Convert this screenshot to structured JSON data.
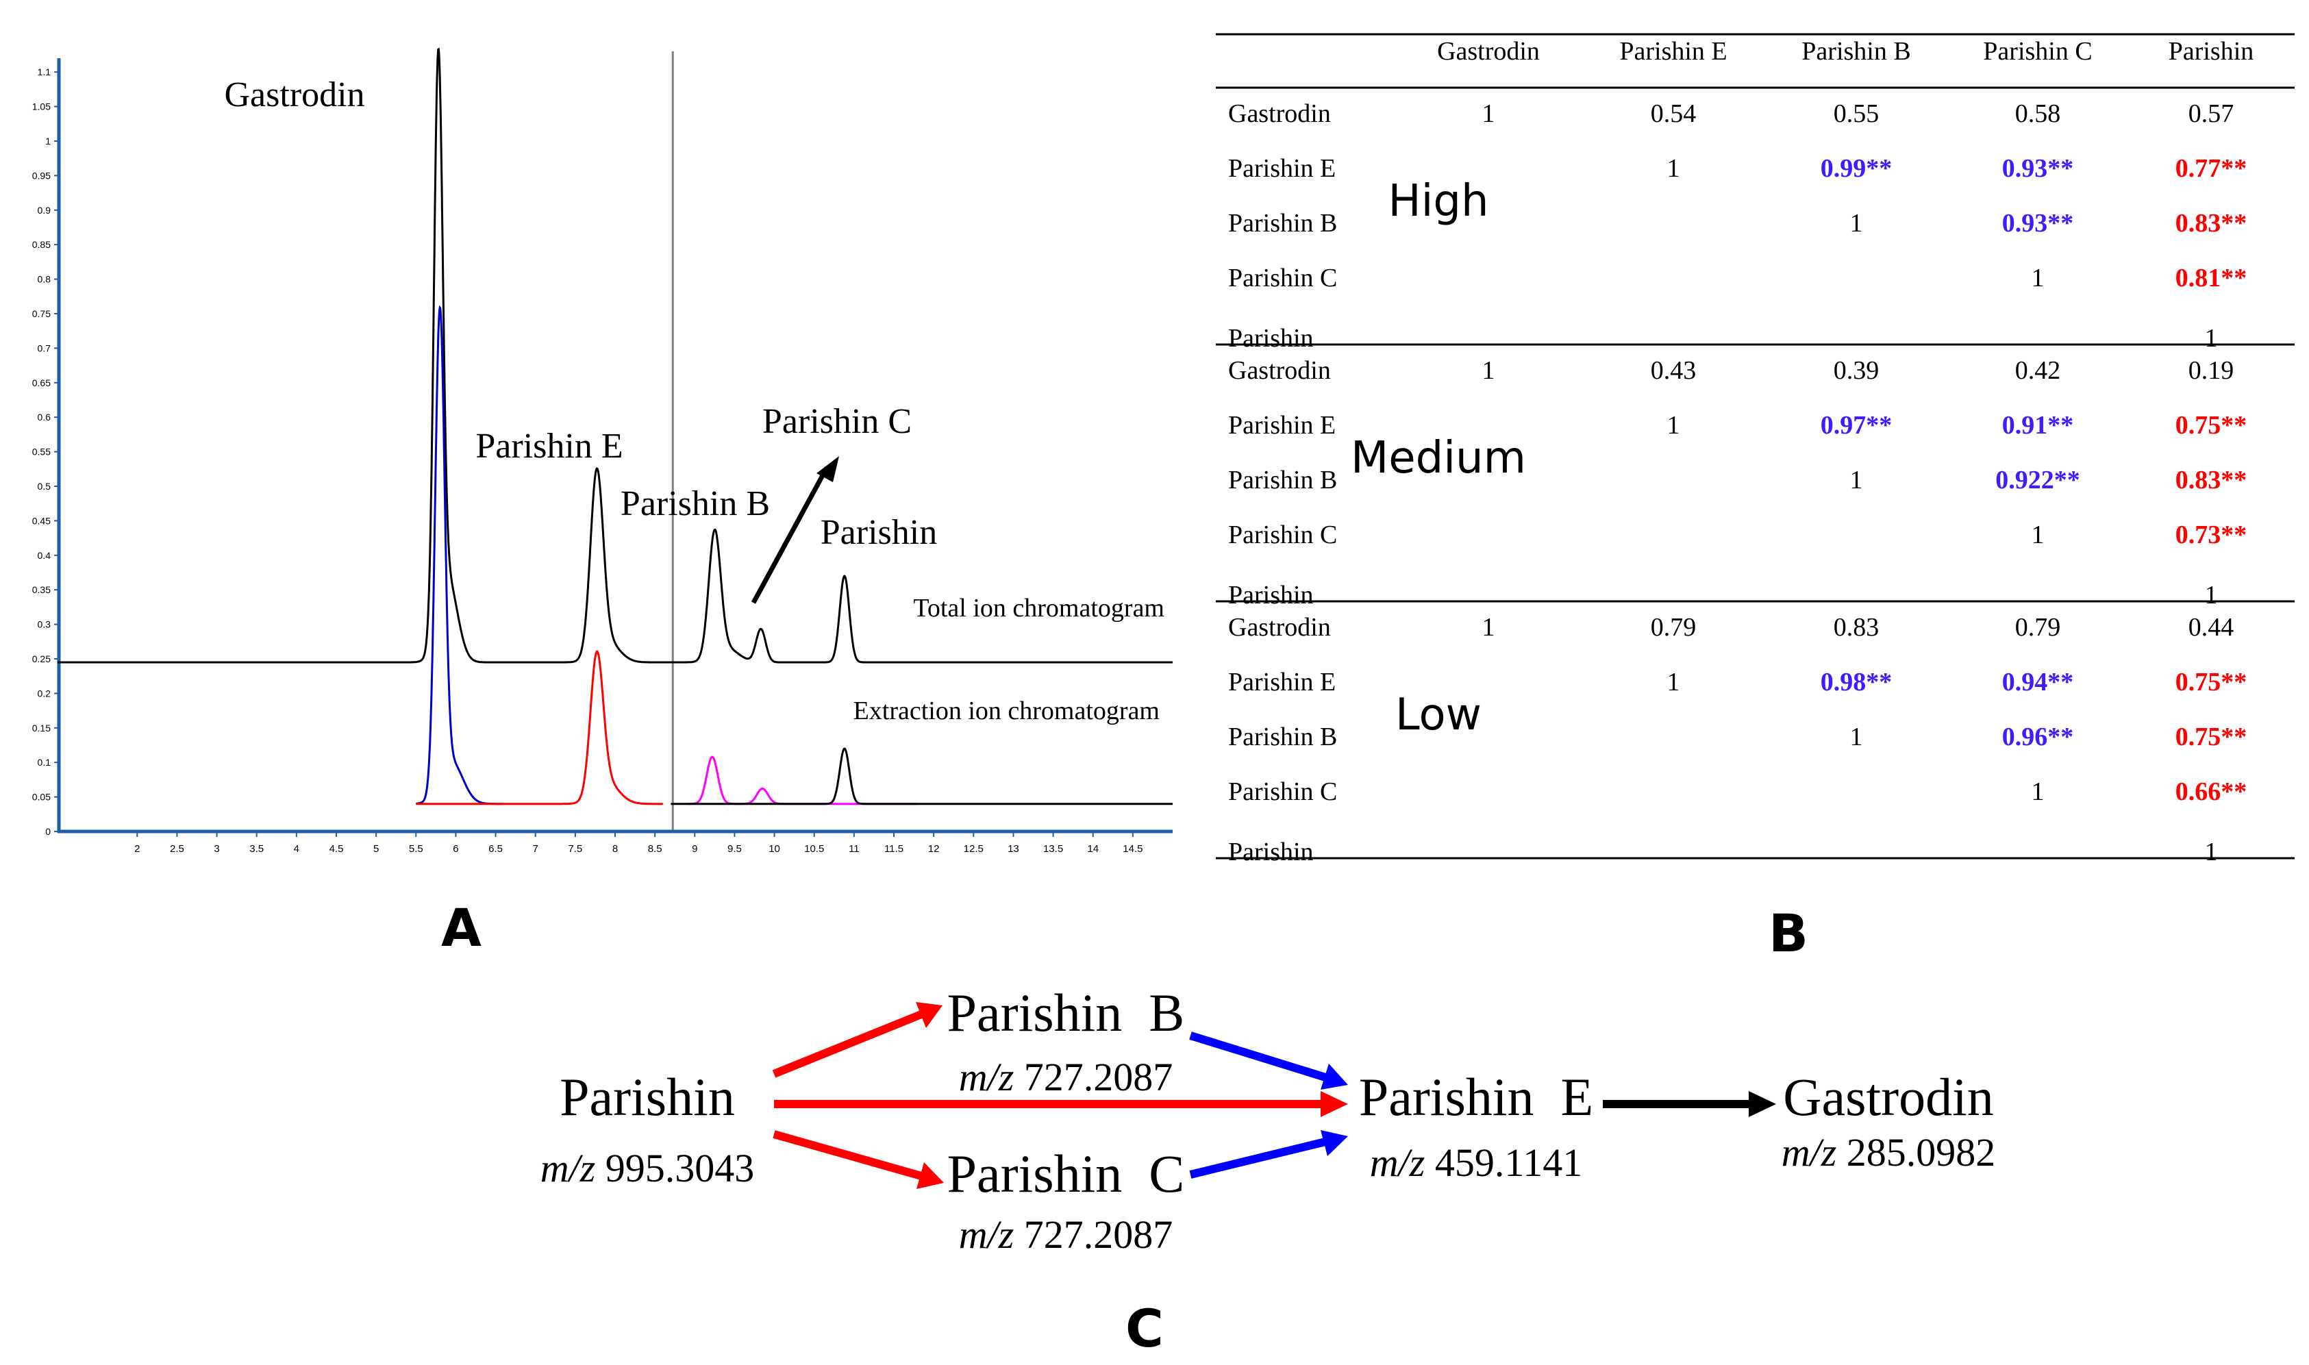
{
  "chart_data": [
    {
      "type": "line",
      "panel": "A",
      "xlim": [
        1.0,
        15.0
      ],
      "ylim": [
        0.0,
        1.12
      ],
      "x_ticks": [
        2,
        2.5,
        3,
        3.5,
        4,
        4.5,
        5,
        5.5,
        6,
        6.5,
        7,
        7.5,
        8,
        8.5,
        9,
        9.5,
        10,
        10.5,
        11,
        11.5,
        12,
        12.5,
        13,
        13.5,
        14,
        14.5
      ],
      "x_tick_labels": [
        "2",
        "2.5",
        "3",
        "3.5",
        "4",
        "4.5",
        "5",
        "5.5",
        "6",
        "6.5",
        "7",
        "7.5",
        "8",
        "8.5",
        "9",
        "9.5",
        "10",
        "10.5",
        "11",
        "11.5",
        "12",
        "12.5",
        "13",
        "13.5",
        "14",
        "14.5"
      ],
      "y_ticks": [
        0,
        0.05,
        0.1,
        0.15,
        0.2,
        0.25,
        0.3,
        0.35,
        0.4,
        0.45,
        0.5,
        0.55,
        0.6,
        0.65,
        0.7,
        0.75,
        0.8,
        0.85,
        0.9,
        0.95,
        1.0,
        1.05,
        1.1
      ],
      "y_tick_labels": [
        "0",
        "0.05",
        "0.1",
        "0.15",
        "0.2",
        "0.25",
        "0.3",
        "0.35",
        "0.4",
        "0.45",
        "0.5",
        "0.55",
        "0.6",
        "0.65",
        "0.7",
        "0.75",
        "0.8",
        "0.85",
        "0.9",
        "0.95",
        "1",
        "1.05",
        "1.1"
      ],
      "vline_x": 8.72,
      "series": [
        {
          "name": "Total ion chromatogram",
          "color": "#000000",
          "baseline": 0.245,
          "peaks": [
            [
              5.78,
              0.815,
              0.055
            ],
            [
              5.9,
              0.12,
              0.12
            ],
            [
              7.77,
              0.26,
              0.08
            ],
            [
              7.9,
              0.03,
              0.15
            ],
            [
              9.25,
              0.18,
              0.075
            ],
            [
              9.4,
              0.02,
              0.15
            ],
            [
              9.83,
              0.048,
              0.06
            ],
            [
              10.88,
              0.125,
              0.06
            ]
          ]
        },
        {
          "name": "Gastrodin EIC",
          "color": "#0000cc",
          "baseline": 0.04,
          "x_range": [
            5.5,
            6.6
          ],
          "peaks": [
            [
              5.8,
              0.685,
              0.06
            ],
            [
              5.95,
              0.06,
              0.14
            ]
          ]
        },
        {
          "name": "Parishin E EIC",
          "color": "#ff0000",
          "baseline": 0.04,
          "x_range": [
            5.5,
            8.6
          ],
          "peaks": [
            [
              7.77,
              0.2,
              0.08
            ],
            [
              7.9,
              0.03,
              0.15
            ]
          ]
        },
        {
          "name": "Parishin B/C EIC",
          "color": "#ff00ff",
          "baseline": 0.04,
          "x_range": [
            8.9,
            11.8
          ],
          "peaks": [
            [
              9.22,
              0.068,
              0.07
            ],
            [
              9.85,
              0.022,
              0.07
            ]
          ]
        },
        {
          "name": "Parishin EIC",
          "color": "#000000",
          "baseline": 0.04,
          "x_range": [
            8.7,
            15.0
          ],
          "peaks": [
            [
              10.88,
              0.08,
              0.06
            ]
          ]
        }
      ],
      "annotations": {
        "gastrodin": "Gastrodin",
        "parishin_e": "Parishin E",
        "parishin_b": "Parishin B",
        "parishin_c": "Parishin C",
        "parishin": "Parishin",
        "tic": "Total ion chromatogram",
        "eic": "Extraction ion chromatogram"
      }
    },
    {
      "type": "table",
      "panel": "B",
      "columns": [
        "",
        "Gastrodin",
        "Parishin  E",
        "Parishin  B",
        "Parishin  C",
        "Parishin"
      ],
      "groups": [
        {
          "label": "High",
          "rows": [
            {
              "name": "Gastrodin",
              "cells": [
                {
                  "v": "1",
                  "c": "k"
                },
                {
                  "v": "0.54",
                  "c": "k"
                },
                {
                  "v": "0.55",
                  "c": "k"
                },
                {
                  "v": "0.58",
                  "c": "k"
                },
                {
                  "v": "0.57",
                  "c": "k"
                }
              ]
            },
            {
              "name": "Parishin  E",
              "cells": [
                {
                  "v": "",
                  "c": "k"
                },
                {
                  "v": "1",
                  "c": "k"
                },
                {
                  "v": "0.99**",
                  "c": "b"
                },
                {
                  "v": "0.93**",
                  "c": "b"
                },
                {
                  "v": "0.77**",
                  "c": "r"
                }
              ]
            },
            {
              "name": "Parishin  B",
              "cells": [
                {
                  "v": "",
                  "c": "k"
                },
                {
                  "v": "",
                  "c": "k"
                },
                {
                  "v": "1",
                  "c": "k"
                },
                {
                  "v": "0.93**",
                  "c": "b"
                },
                {
                  "v": "0.83**",
                  "c": "r"
                }
              ]
            },
            {
              "name": "Parishin  C",
              "cells": [
                {
                  "v": "",
                  "c": "k"
                },
                {
                  "v": "",
                  "c": "k"
                },
                {
                  "v": "",
                  "c": "k"
                },
                {
                  "v": "1",
                  "c": "k"
                },
                {
                  "v": "0.81**",
                  "c": "r"
                }
              ]
            },
            {
              "name": "Parishin",
              "cells": [
                {
                  "v": "",
                  "c": "k"
                },
                {
                  "v": "",
                  "c": "k"
                },
                {
                  "v": "",
                  "c": "k"
                },
                {
                  "v": "",
                  "c": "k"
                },
                {
                  "v": "1",
                  "c": "k"
                }
              ]
            }
          ]
        },
        {
          "label": "Medium",
          "rows": [
            {
              "name": "Gastrodin",
              "cells": [
                {
                  "v": "1",
                  "c": "k"
                },
                {
                  "v": "0.43",
                  "c": "k"
                },
                {
                  "v": "0.39",
                  "c": "k"
                },
                {
                  "v": "0.42",
                  "c": "k"
                },
                {
                  "v": "0.19",
                  "c": "k"
                }
              ]
            },
            {
              "name": "Parishin  E",
              "cells": [
                {
                  "v": "",
                  "c": "k"
                },
                {
                  "v": "1",
                  "c": "k"
                },
                {
                  "v": "0.97**",
                  "c": "b"
                },
                {
                  "v": "0.91**",
                  "c": "b"
                },
                {
                  "v": "0.75**",
                  "c": "r"
                }
              ]
            },
            {
              "name": "Parishin  B",
              "cells": [
                {
                  "v": "",
                  "c": "k"
                },
                {
                  "v": "",
                  "c": "k"
                },
                {
                  "v": "1",
                  "c": "k"
                },
                {
                  "v": "0.922**",
                  "c": "b"
                },
                {
                  "v": "0.83**",
                  "c": "r"
                }
              ]
            },
            {
              "name": "Parishin  C",
              "cells": [
                {
                  "v": "",
                  "c": "k"
                },
                {
                  "v": "",
                  "c": "k"
                },
                {
                  "v": "",
                  "c": "k"
                },
                {
                  "v": "1",
                  "c": "k"
                },
                {
                  "v": "0.73**",
                  "c": "r"
                }
              ]
            },
            {
              "name": "Parishin",
              "cells": [
                {
                  "v": "",
                  "c": "k"
                },
                {
                  "v": "",
                  "c": "k"
                },
                {
                  "v": "",
                  "c": "k"
                },
                {
                  "v": "",
                  "c": "k"
                },
                {
                  "v": "1",
                  "c": "k"
                }
              ]
            }
          ]
        },
        {
          "label": "Low",
          "rows": [
            {
              "name": "Gastrodin",
              "cells": [
                {
                  "v": "1",
                  "c": "k"
                },
                {
                  "v": "0.79",
                  "c": "k"
                },
                {
                  "v": "0.83",
                  "c": "k"
                },
                {
                  "v": "0.79",
                  "c": "k"
                },
                {
                  "v": "0.44",
                  "c": "k"
                }
              ]
            },
            {
              "name": "Parishin  E",
              "cells": [
                {
                  "v": "",
                  "c": "k"
                },
                {
                  "v": "1",
                  "c": "k"
                },
                {
                  "v": "0.98**",
                  "c": "b"
                },
                {
                  "v": "0.94**",
                  "c": "b"
                },
                {
                  "v": "0.75**",
                  "c": "r"
                }
              ]
            },
            {
              "name": "Parishin  B",
              "cells": [
                {
                  "v": "",
                  "c": "k"
                },
                {
                  "v": "",
                  "c": "k"
                },
                {
                  "v": "1",
                  "c": "k"
                },
                {
                  "v": "0.96**",
                  "c": "b"
                },
                {
                  "v": "0.75**",
                  "c": "r"
                }
              ]
            },
            {
              "name": "Parishin  C",
              "cells": [
                {
                  "v": "",
                  "c": "k"
                },
                {
                  "v": "",
                  "c": "k"
                },
                {
                  "v": "",
                  "c": "k"
                },
                {
                  "v": "1",
                  "c": "k"
                },
                {
                  "v": "0.66**",
                  "c": "r"
                }
              ]
            },
            {
              "name": "Parishin",
              "cells": [
                {
                  "v": "",
                  "c": "k"
                },
                {
                  "v": "",
                  "c": "k"
                },
                {
                  "v": "",
                  "c": "k"
                },
                {
                  "v": "",
                  "c": "k"
                },
                {
                  "v": "1",
                  "c": "k"
                }
              ]
            }
          ]
        }
      ]
    },
    {
      "type": "diagram",
      "panel": "C",
      "nodes": {
        "parishin": {
          "name": "Parishin",
          "mz": "995.3043"
        },
        "parishin_b": {
          "name": "Parishin  B",
          "mz": "727.2087"
        },
        "parishin_c": {
          "name": "Parishin  C",
          "mz": "727.2087"
        },
        "parishin_e": {
          "name": "Parishin  E",
          "mz": "459.1141"
        },
        "gastrodin": {
          "name": "Gastrodin",
          "mz": "285.0982"
        }
      },
      "mz_label": "m/z"
    }
  ],
  "panel_labels": {
    "a": "A",
    "b": "B",
    "c": "C"
  },
  "colors": {
    "tic": "#000000",
    "gastrodin": "#0000cc",
    "parishin_e": "#ff0000",
    "parishin_bc": "#ff00ff",
    "axis": "#1f5fa8",
    "table_blue": "#3d1cff",
    "table_red": "#ff0000",
    "arrow_red": "#ff0000",
    "arrow_blue": "#0000ff"
  }
}
